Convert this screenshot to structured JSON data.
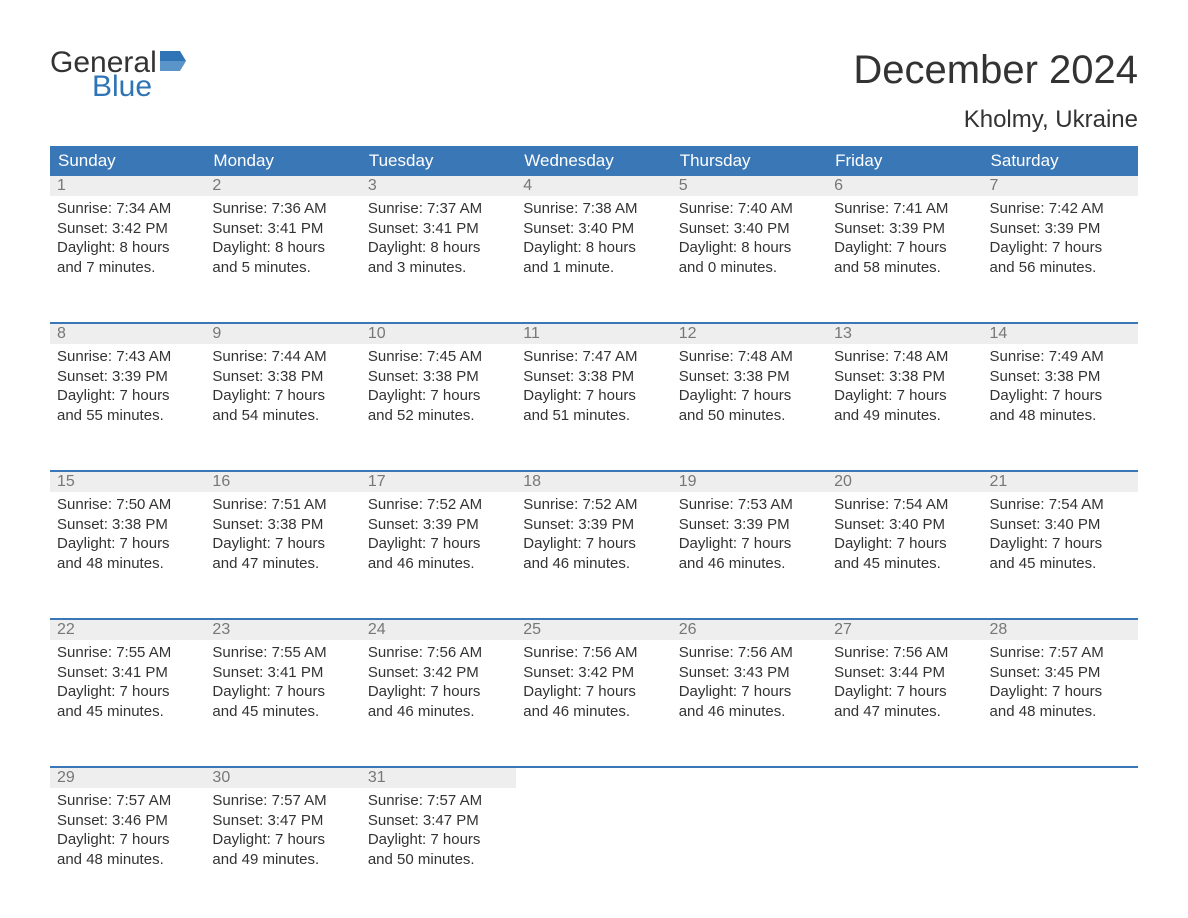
{
  "logo": {
    "general": "General",
    "blue": "Blue"
  },
  "title": "December 2024",
  "location": "Kholmy, Ukraine",
  "colors": {
    "header_bg": "#3a77b6",
    "header_text": "#ffffff",
    "daynum_bg": "#eeeeee",
    "daynum_text": "#777777",
    "body_text": "#333333",
    "rule": "#3a77b6",
    "logo_blue": "#2f74b5"
  },
  "weekdays": [
    "Sunday",
    "Monday",
    "Tuesday",
    "Wednesday",
    "Thursday",
    "Friday",
    "Saturday"
  ],
  "weeks": [
    [
      {
        "n": "1",
        "sr": "Sunrise: 7:34 AM",
        "ss": "Sunset: 3:42 PM",
        "d1": "Daylight: 8 hours",
        "d2": "and 7 minutes."
      },
      {
        "n": "2",
        "sr": "Sunrise: 7:36 AM",
        "ss": "Sunset: 3:41 PM",
        "d1": "Daylight: 8 hours",
        "d2": "and 5 minutes."
      },
      {
        "n": "3",
        "sr": "Sunrise: 7:37 AM",
        "ss": "Sunset: 3:41 PM",
        "d1": "Daylight: 8 hours",
        "d2": "and 3 minutes."
      },
      {
        "n": "4",
        "sr": "Sunrise: 7:38 AM",
        "ss": "Sunset: 3:40 PM",
        "d1": "Daylight: 8 hours",
        "d2": "and 1 minute."
      },
      {
        "n": "5",
        "sr": "Sunrise: 7:40 AM",
        "ss": "Sunset: 3:40 PM",
        "d1": "Daylight: 8 hours",
        "d2": "and 0 minutes."
      },
      {
        "n": "6",
        "sr": "Sunrise: 7:41 AM",
        "ss": "Sunset: 3:39 PM",
        "d1": "Daylight: 7 hours",
        "d2": "and 58 minutes."
      },
      {
        "n": "7",
        "sr": "Sunrise: 7:42 AM",
        "ss": "Sunset: 3:39 PM",
        "d1": "Daylight: 7 hours",
        "d2": "and 56 minutes."
      }
    ],
    [
      {
        "n": "8",
        "sr": "Sunrise: 7:43 AM",
        "ss": "Sunset: 3:39 PM",
        "d1": "Daylight: 7 hours",
        "d2": "and 55 minutes."
      },
      {
        "n": "9",
        "sr": "Sunrise: 7:44 AM",
        "ss": "Sunset: 3:38 PM",
        "d1": "Daylight: 7 hours",
        "d2": "and 54 minutes."
      },
      {
        "n": "10",
        "sr": "Sunrise: 7:45 AM",
        "ss": "Sunset: 3:38 PM",
        "d1": "Daylight: 7 hours",
        "d2": "and 52 minutes."
      },
      {
        "n": "11",
        "sr": "Sunrise: 7:47 AM",
        "ss": "Sunset: 3:38 PM",
        "d1": "Daylight: 7 hours",
        "d2": "and 51 minutes."
      },
      {
        "n": "12",
        "sr": "Sunrise: 7:48 AM",
        "ss": "Sunset: 3:38 PM",
        "d1": "Daylight: 7 hours",
        "d2": "and 50 minutes."
      },
      {
        "n": "13",
        "sr": "Sunrise: 7:48 AM",
        "ss": "Sunset: 3:38 PM",
        "d1": "Daylight: 7 hours",
        "d2": "and 49 minutes."
      },
      {
        "n": "14",
        "sr": "Sunrise: 7:49 AM",
        "ss": "Sunset: 3:38 PM",
        "d1": "Daylight: 7 hours",
        "d2": "and 48 minutes."
      }
    ],
    [
      {
        "n": "15",
        "sr": "Sunrise: 7:50 AM",
        "ss": "Sunset: 3:38 PM",
        "d1": "Daylight: 7 hours",
        "d2": "and 48 minutes."
      },
      {
        "n": "16",
        "sr": "Sunrise: 7:51 AM",
        "ss": "Sunset: 3:38 PM",
        "d1": "Daylight: 7 hours",
        "d2": "and 47 minutes."
      },
      {
        "n": "17",
        "sr": "Sunrise: 7:52 AM",
        "ss": "Sunset: 3:39 PM",
        "d1": "Daylight: 7 hours",
        "d2": "and 46 minutes."
      },
      {
        "n": "18",
        "sr": "Sunrise: 7:52 AM",
        "ss": "Sunset: 3:39 PM",
        "d1": "Daylight: 7 hours",
        "d2": "and 46 minutes."
      },
      {
        "n": "19",
        "sr": "Sunrise: 7:53 AM",
        "ss": "Sunset: 3:39 PM",
        "d1": "Daylight: 7 hours",
        "d2": "and 46 minutes."
      },
      {
        "n": "20",
        "sr": "Sunrise: 7:54 AM",
        "ss": "Sunset: 3:40 PM",
        "d1": "Daylight: 7 hours",
        "d2": "and 45 minutes."
      },
      {
        "n": "21",
        "sr": "Sunrise: 7:54 AM",
        "ss": "Sunset: 3:40 PM",
        "d1": "Daylight: 7 hours",
        "d2": "and 45 minutes."
      }
    ],
    [
      {
        "n": "22",
        "sr": "Sunrise: 7:55 AM",
        "ss": "Sunset: 3:41 PM",
        "d1": "Daylight: 7 hours",
        "d2": "and 45 minutes."
      },
      {
        "n": "23",
        "sr": "Sunrise: 7:55 AM",
        "ss": "Sunset: 3:41 PM",
        "d1": "Daylight: 7 hours",
        "d2": "and 45 minutes."
      },
      {
        "n": "24",
        "sr": "Sunrise: 7:56 AM",
        "ss": "Sunset: 3:42 PM",
        "d1": "Daylight: 7 hours",
        "d2": "and 46 minutes."
      },
      {
        "n": "25",
        "sr": "Sunrise: 7:56 AM",
        "ss": "Sunset: 3:42 PM",
        "d1": "Daylight: 7 hours",
        "d2": "and 46 minutes."
      },
      {
        "n": "26",
        "sr": "Sunrise: 7:56 AM",
        "ss": "Sunset: 3:43 PM",
        "d1": "Daylight: 7 hours",
        "d2": "and 46 minutes."
      },
      {
        "n": "27",
        "sr": "Sunrise: 7:56 AM",
        "ss": "Sunset: 3:44 PM",
        "d1": "Daylight: 7 hours",
        "d2": "and 47 minutes."
      },
      {
        "n": "28",
        "sr": "Sunrise: 7:57 AM",
        "ss": "Sunset: 3:45 PM",
        "d1": "Daylight: 7 hours",
        "d2": "and 48 minutes."
      }
    ],
    [
      {
        "n": "29",
        "sr": "Sunrise: 7:57 AM",
        "ss": "Sunset: 3:46 PM",
        "d1": "Daylight: 7 hours",
        "d2": "and 48 minutes."
      },
      {
        "n": "30",
        "sr": "Sunrise: 7:57 AM",
        "ss": "Sunset: 3:47 PM",
        "d1": "Daylight: 7 hours",
        "d2": "and 49 minutes."
      },
      {
        "n": "31",
        "sr": "Sunrise: 7:57 AM",
        "ss": "Sunset: 3:47 PM",
        "d1": "Daylight: 7 hours",
        "d2": "and 50 minutes."
      },
      {
        "empty": true
      },
      {
        "empty": true
      },
      {
        "empty": true
      },
      {
        "empty": true
      }
    ]
  ]
}
